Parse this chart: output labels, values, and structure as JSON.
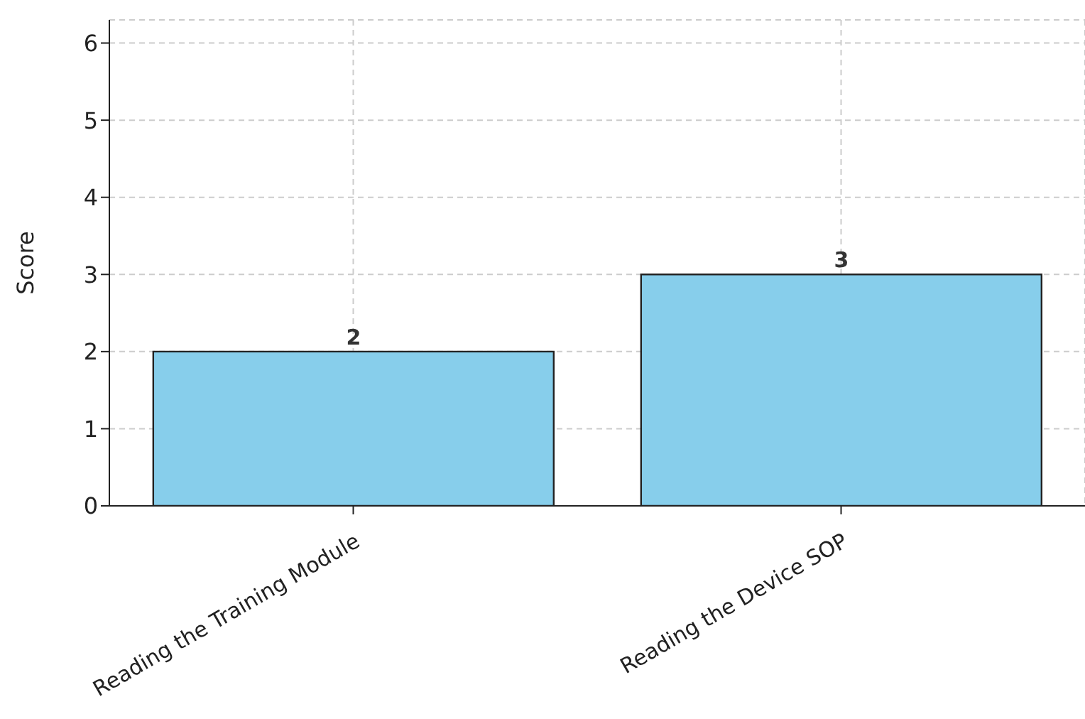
{
  "chart_data": {
    "type": "bar",
    "ylabel": "Score",
    "categories": [
      "Reading the Training Module",
      "Reading the Device SOP"
    ],
    "values": [
      2,
      3
    ],
    "color": "#87ceeb",
    "ylim": [
      0,
      6.3
    ],
    "yticks": [
      0,
      1,
      2,
      3,
      4,
      5,
      6
    ],
    "grid": true,
    "data_labels": true
  }
}
